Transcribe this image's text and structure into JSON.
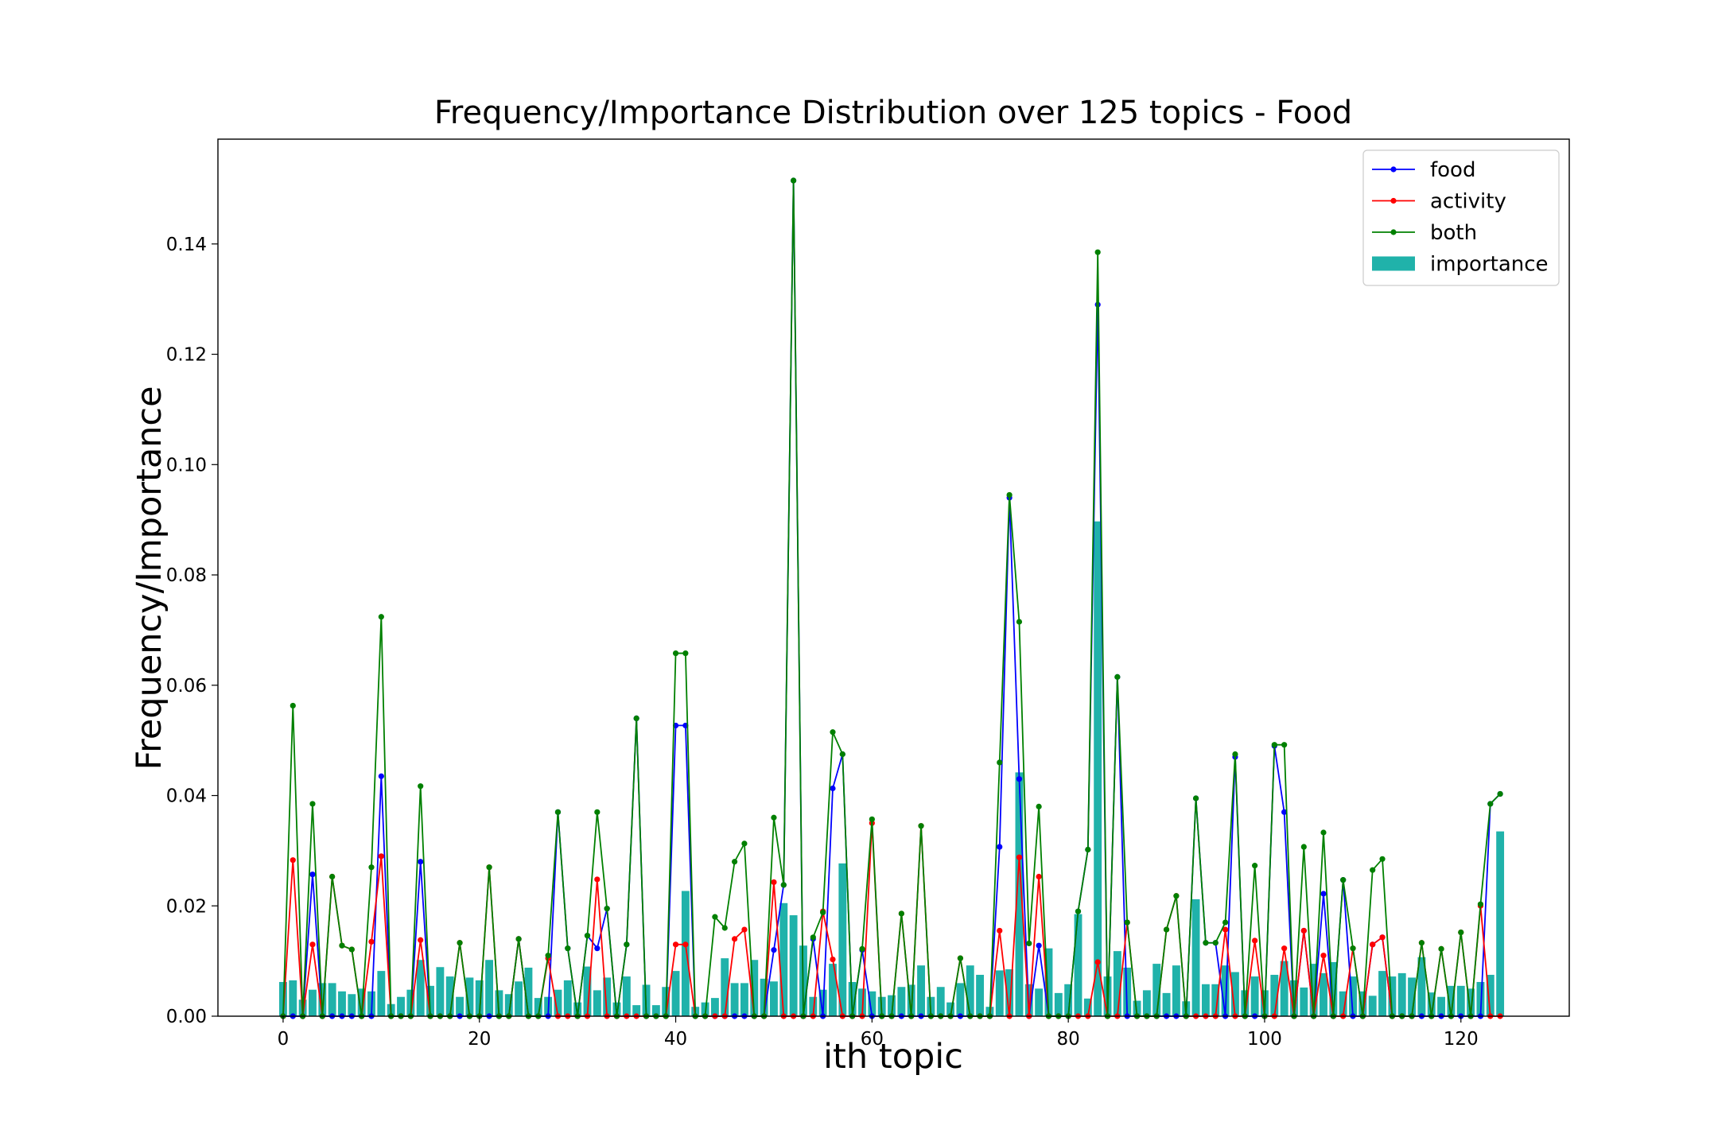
{
  "chart_data": {
    "type": "combo",
    "title": "Frequency/Importance Distribution over 125 topics - Food",
    "x_label": "ith topic",
    "y_label": "Frequency/Importance",
    "xlim": [
      -6.64,
      131.04
    ],
    "ylim": [
      0,
      0.159
    ],
    "xticks": [
      0,
      20,
      40,
      60,
      80,
      100,
      120
    ],
    "yticks": [
      {
        "value": 0,
        "label": "0.00"
      },
      {
        "value": 0.02,
        "label": "0.02"
      },
      {
        "value": 0.04,
        "label": "0.04"
      },
      {
        "value": 0.06,
        "label": "0.06"
      },
      {
        "value": 0.08,
        "label": "0.08"
      },
      {
        "value": 0.1,
        "label": "0.10"
      },
      {
        "value": 0.12,
        "label": "0.12"
      },
      {
        "value": 0.14,
        "label": "0.14"
      }
    ],
    "legend": "upper right",
    "series": [
      {
        "name": "food",
        "type": "line",
        "color": "#0000ff",
        "values": [
          0,
          0,
          0,
          0.0257,
          0,
          0,
          0,
          0,
          0,
          0,
          0.0435,
          0,
          0,
          0,
          0.028,
          0,
          0,
          0,
          0,
          0,
          0,
          0,
          0,
          0,
          0.014,
          0,
          0,
          0,
          0.037,
          0.0123,
          0,
          0.0146,
          0.0123,
          0.0195,
          0,
          0.013,
          0.054,
          0,
          0,
          0,
          0.0527,
          0.0527,
          0,
          0,
          0,
          0,
          0,
          0,
          0,
          0,
          0.012,
          0.0238,
          0.1515,
          0,
          0.014,
          0,
          0.0413,
          0.0475,
          0,
          0.012,
          0,
          0,
          0,
          0,
          0,
          0,
          0,
          0,
          0,
          0,
          0,
          0,
          0,
          0.0307,
          0.094,
          0.043,
          0,
          0.0128,
          0,
          0,
          0,
          0.019,
          0.0302,
          0.129,
          0,
          0.0615,
          0,
          0,
          0,
          0,
          0,
          0,
          0,
          0.0395,
          0.0133,
          0.0133,
          0,
          0.047,
          0,
          0,
          0,
          0.049,
          0.037,
          0,
          0.0155,
          0,
          0.0222,
          0,
          0.0247,
          0,
          0,
          0.013,
          0.0143,
          0,
          0,
          0,
          0,
          0,
          0,
          0,
          0,
          0,
          0,
          0.0385,
          0.0403
        ]
      },
      {
        "name": "activity",
        "type": "line",
        "color": "#ff0000",
        "values": [
          0,
          0.0283,
          0,
          0.013,
          0,
          0.0253,
          0.0128,
          0.0121,
          0,
          0.0135,
          0.029,
          0,
          0,
          0,
          0.0138,
          0,
          0,
          0,
          0.0133,
          0,
          0,
          0.027,
          0,
          0,
          0.014,
          0,
          0,
          0.0105,
          0,
          0,
          0,
          0,
          0.0248,
          0,
          0,
          0,
          0,
          0,
          0,
          0,
          0.013,
          0.013,
          0,
          0,
          0,
          0,
          0.014,
          0.0157,
          0,
          0,
          0.0243,
          0,
          0,
          0,
          0,
          0.019,
          0.0103,
          0,
          0,
          0,
          0.035,
          0,
          0,
          0.0186,
          0,
          0.0345,
          0,
          0,
          0,
          0.0105,
          0,
          0,
          0,
          0.0155,
          0,
          0.0288,
          0,
          0.0253,
          0,
          0,
          0,
          0,
          0,
          0.0098,
          0,
          0,
          0.017,
          0,
          0,
          0,
          0.0157,
          0.0218,
          0,
          0,
          0,
          0,
          0.0157,
          0,
          0,
          0.0137,
          0,
          0,
          0.0123,
          0,
          0.0155,
          0,
          0.011,
          0,
          0,
          0.0123,
          0,
          0.013,
          0.0143,
          0,
          0,
          0,
          0.0133,
          0,
          0.0122,
          0,
          0.0152,
          0,
          0.02,
          0,
          0
        ]
      },
      {
        "name": "both",
        "type": "line",
        "color": "#008000",
        "values": [
          0,
          0.0563,
          0,
          0.0385,
          0,
          0.0253,
          0.0128,
          0.0121,
          0,
          0.027,
          0.0724,
          0,
          0,
          0,
          0.0417,
          0,
          0,
          0,
          0.0133,
          0,
          0,
          0.027,
          0,
          0,
          0.014,
          0,
          0,
          0.011,
          0.037,
          0.0123,
          0,
          0.0146,
          0.037,
          0.0195,
          0,
          0.013,
          0.054,
          0,
          0,
          0,
          0.0658,
          0.0658,
          0,
          0,
          0.018,
          0.016,
          0.028,
          0.0313,
          0,
          0,
          0.036,
          0.0238,
          0.1515,
          0,
          0.0143,
          0.0188,
          0.0515,
          0.0475,
          0,
          0.0122,
          0.0357,
          0,
          0,
          0.0186,
          0,
          0.0345,
          0,
          0,
          0,
          0.0105,
          0,
          0,
          0,
          0.046,
          0.0945,
          0.0715,
          0.0132,
          0.038,
          0,
          0,
          0,
          0.019,
          0.0302,
          0.1385,
          0,
          0.0615,
          0.017,
          0,
          0,
          0,
          0.0157,
          0.0218,
          0,
          0.0395,
          0.0133,
          0.0133,
          0.017,
          0.0475,
          0,
          0.0273,
          0,
          0.0492,
          0.0492,
          0,
          0.0307,
          0,
          0.0333,
          0,
          0.0247,
          0.0123,
          0,
          0.0265,
          0.0285,
          0,
          0,
          0,
          0.0133,
          0,
          0.0122,
          0,
          0.0152,
          0,
          0.0203,
          0.0385,
          0.0403
        ]
      },
      {
        "name": "importance",
        "type": "bar",
        "color": "#20b2aa",
        "values": [
          0.0062,
          0.0065,
          0.003,
          0.0048,
          0.006,
          0.006,
          0.0045,
          0.004,
          0.005,
          0.0045,
          0.0082,
          0.0022,
          0.0035,
          0.0048,
          0.0102,
          0.0055,
          0.0089,
          0.0072,
          0.0035,
          0.007,
          0.0065,
          0.0102,
          0.0047,
          0.004,
          0.0063,
          0.0088,
          0.0033,
          0.0035,
          0.0048,
          0.0065,
          0.0025,
          0.009,
          0.0047,
          0.007,
          0.0025,
          0.0072,
          0.002,
          0.0057,
          0.002,
          0.0053,
          0.0082,
          0.0227,
          0.0017,
          0.0025,
          0.0033,
          0.0105,
          0.006,
          0.006,
          0.0102,
          0.0068,
          0.0063,
          0.0205,
          0.0183,
          0.0128,
          0.0035,
          0.0048,
          0.0095,
          0.0277,
          0.0062,
          0.005,
          0.0045,
          0.0035,
          0.0038,
          0.0053,
          0.0057,
          0.0092,
          0.0035,
          0.0053,
          0.0025,
          0.006,
          0.0092,
          0.0075,
          0.0017,
          0.0083,
          0.0085,
          0.0442,
          0.0058,
          0.005,
          0.0123,
          0.0042,
          0.0058,
          0.0185,
          0.0032,
          0.0897,
          0.0072,
          0.0118,
          0.0088,
          0.0028,
          0.0047,
          0.0095,
          0.0042,
          0.0092,
          0.0027,
          0.0212,
          0.0058,
          0.0058,
          0.0092,
          0.008,
          0.0047,
          0.0072,
          0.0047,
          0.0075,
          0.01,
          0.0065,
          0.0052,
          0.0095,
          0.0078,
          0.0098,
          0.0045,
          0.0072,
          0.0045,
          0.0037,
          0.0082,
          0.0072,
          0.0078,
          0.007,
          0.0107,
          0.0043,
          0.0035,
          0.0055,
          0.0055,
          0.005,
          0.0062,
          0.0075,
          0.0335
        ]
      }
    ]
  }
}
